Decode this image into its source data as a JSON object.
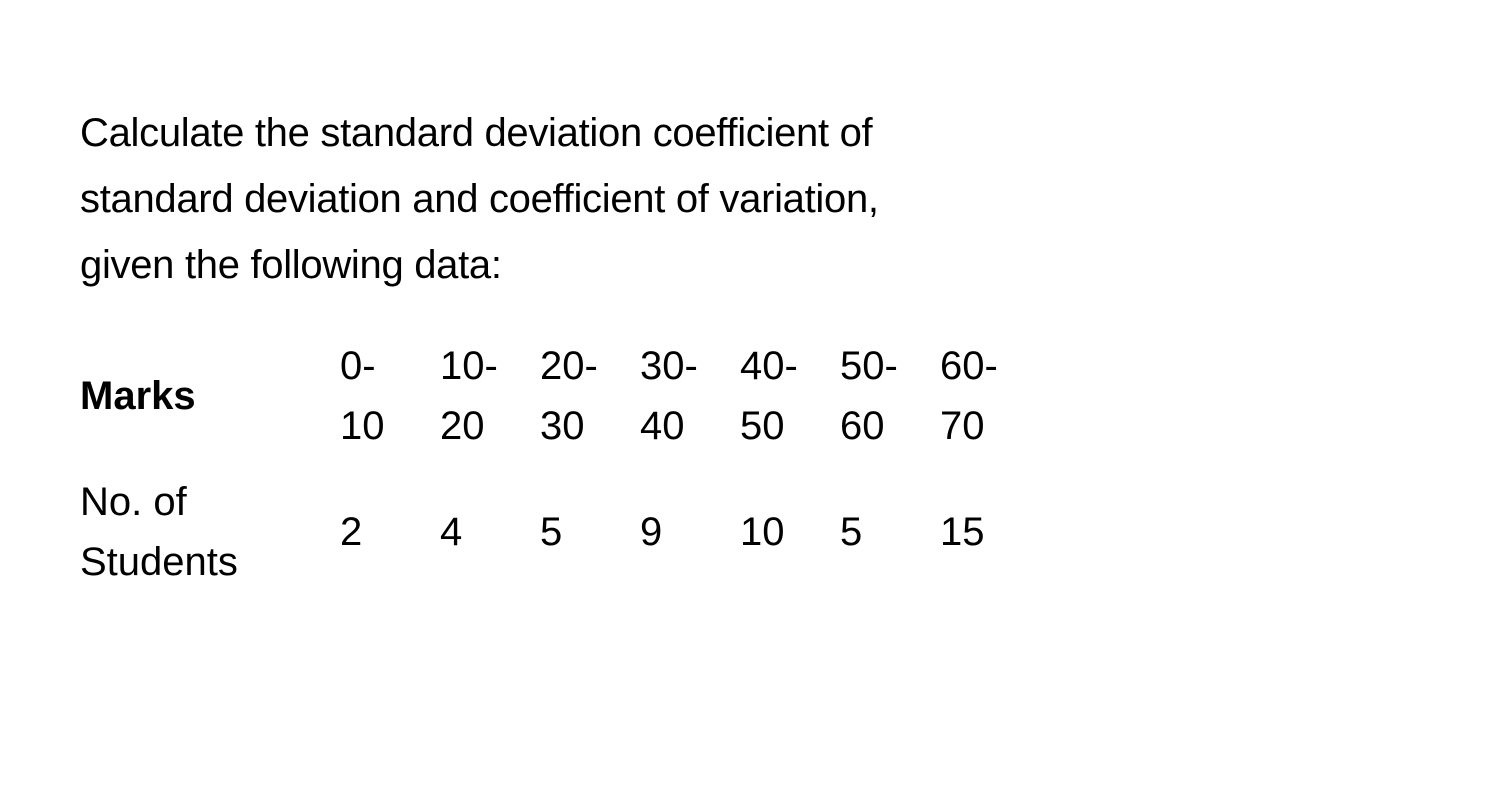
{
  "question": {
    "line1": "Calculate the standard deviation coefficient of",
    "line2": "standard deviation and coefficient of variation,",
    "line3": "given the following data:"
  },
  "table": {
    "row1": {
      "label": "Marks",
      "col1_top": "0-",
      "col1_bot": "10",
      "col2_top": "10-",
      "col2_bot": "20",
      "col3_top": "20-",
      "col3_bot": "30",
      "col4_top": "30-",
      "col4_bot": "40",
      "col5_top": "40-",
      "col5_bot": "50",
      "col6_top": "50-",
      "col6_bot": "60",
      "col7_top": "60-",
      "col7_bot": "70"
    },
    "row2": {
      "label_top": "No. of",
      "label_bot": "Students",
      "col1": "2",
      "col2": "4",
      "col3": "5",
      "col4": "9",
      "col5": "10",
      "col6": "5",
      "col7": "15"
    }
  }
}
